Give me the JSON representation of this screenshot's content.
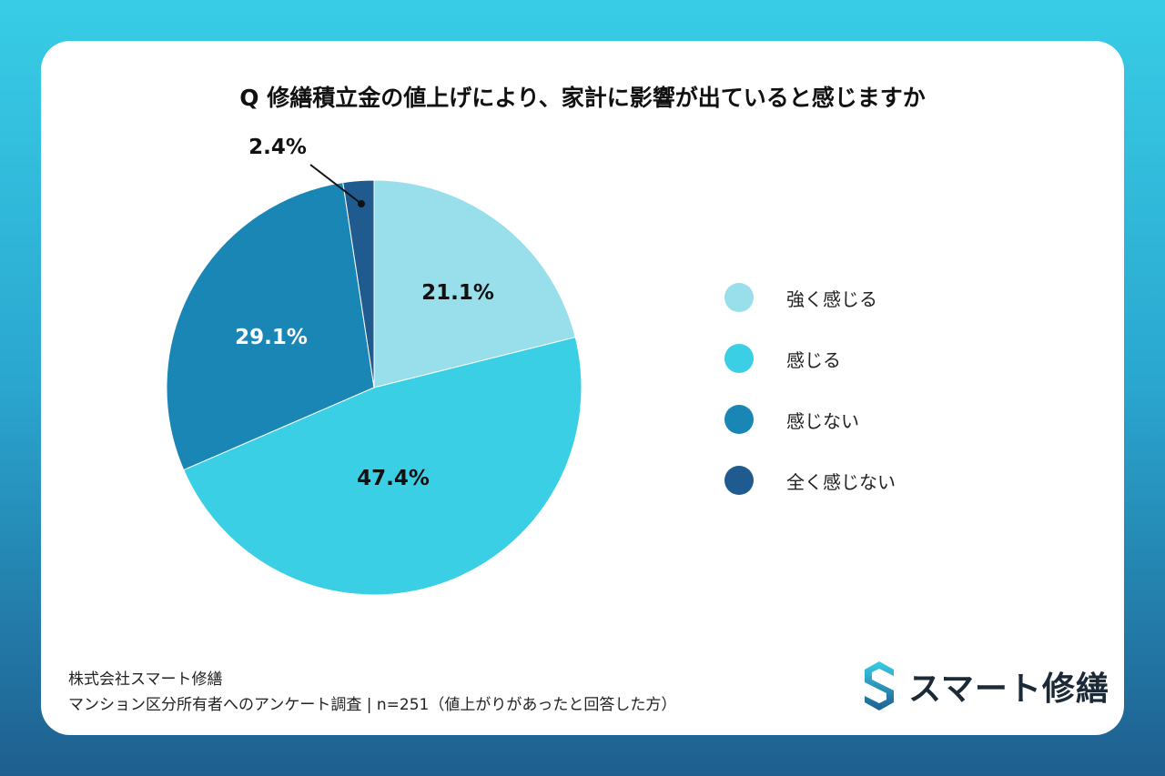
{
  "chart_data": {
    "type": "pie",
    "title": "Q 修繕積立金の値上げにより、家計に影響が出ていると感じますか",
    "start": "top",
    "direction": "clockwise",
    "categories": [
      "強く感じる",
      "感じる",
      "感じない",
      "全く感じない"
    ],
    "values": [
      21.1,
      47.4,
      29.1,
      2.4
    ],
    "labels": [
      "21.1%",
      "47.4%",
      "29.1%",
      "2.4%"
    ],
    "colors": [
      "#98dfeb",
      "#3bcfe6",
      "#1a86b6",
      "#1f5b8e"
    ],
    "label_colors": [
      "#111111",
      "#111111",
      "#ffffff",
      "#111111"
    ],
    "legend_position": "right"
  },
  "footer": {
    "company": "株式会社スマート修繕",
    "survey": "マンション区分所有者へのアンケート調査 | n=251（値上がりがあったと回答した方）"
  },
  "logo": {
    "text": "スマート修繕"
  }
}
